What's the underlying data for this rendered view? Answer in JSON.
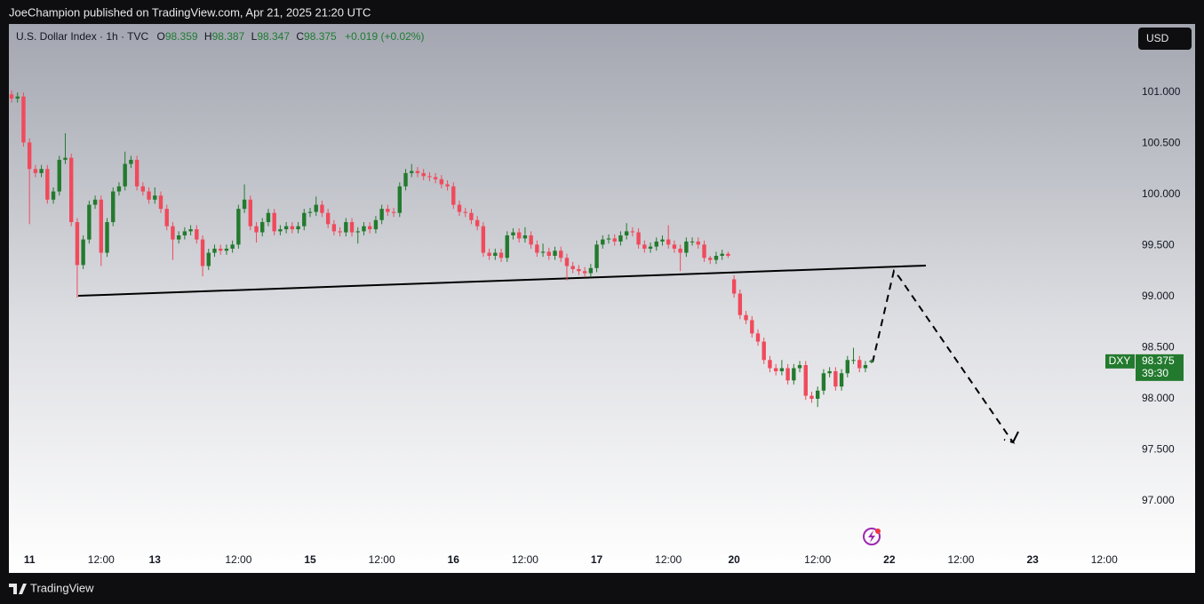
{
  "page": {
    "published": "JoeChampion published on TradingView.com, Apr 21, 2025 21:20 UTC",
    "brand": "TradingView"
  },
  "chart_data": {
    "type": "candlestick",
    "title": "U.S. Dollar Index · 1h · TVC",
    "ohlc_labels": [
      "O",
      "H",
      "L",
      "C"
    ],
    "change": "+0.019 (+0.02%)",
    "currency": "USD",
    "symbol": "DXY",
    "countdown": "39:30",
    "up_color": "#237a2e",
    "down_color": "#f04a5c",
    "categories": [
      null,
      null,
      null,
      "11",
      null,
      null,
      null,
      null,
      null,
      null,
      null,
      null,
      null,
      null,
      null,
      "12:00",
      null,
      null,
      null,
      null,
      null,
      null,
      null,
      null,
      "13",
      null,
      null,
      null,
      null,
      null,
      null,
      null,
      null,
      null,
      null,
      null,
      null,
      null,
      "12:00",
      null,
      null,
      null,
      null,
      null,
      null,
      null,
      null,
      null,
      null,
      null,
      "15",
      null,
      null,
      null,
      null,
      null,
      null,
      null,
      null,
      null,
      null,
      null,
      "12:00",
      null,
      null,
      null,
      null,
      null,
      null,
      null,
      null,
      null,
      null,
      null,
      "16",
      null,
      null,
      null,
      null,
      null,
      null,
      null,
      null,
      null,
      null,
      null,
      "12:00",
      null,
      null,
      null,
      null,
      null,
      null,
      null,
      null,
      null,
      null,
      null,
      "17",
      null,
      null,
      null,
      null,
      null,
      null,
      null,
      null,
      null,
      null,
      null,
      "12:00",
      null,
      null,
      null,
      null,
      null,
      null,
      null,
      null,
      null,
      null,
      "20",
      null,
      null,
      null,
      null,
      null,
      null,
      null,
      null,
      null,
      null,
      null,
      null,
      null,
      "12:00",
      null,
      null,
      null,
      null,
      null,
      null,
      null,
      null,
      null,
      null,
      null,
      "22",
      null,
      null,
      null,
      null,
      null,
      null,
      null,
      null,
      null,
      null,
      null,
      "12:00",
      null,
      null,
      null,
      null,
      null,
      null,
      null,
      null,
      null,
      null,
      null,
      "23",
      null,
      null,
      null,
      null,
      null,
      null,
      null,
      null,
      null,
      null,
      null,
      "12:00",
      null,
      null,
      null,
      null,
      null
    ],
    "open": [
      100.98,
      100.94,
      100.96,
      100.51,
      100.25,
      100.21,
      100.25,
      99.95,
      100.03,
      100.34,
      100.36,
      99.73,
      99.31,
      99.56,
      99.9,
      99.95,
      99.43,
      99.73,
      100.03,
      100.08,
      100.3,
      100.34,
      100.08,
      100.03,
      99.95,
      99.99,
      99.86,
      99.69,
      99.56,
      99.6,
      99.64,
      99.66,
      99.56,
      99.3,
      99.43,
      99.47,
      99.45,
      99.47,
      99.51,
      99.86,
      99.95,
      99.69,
      99.63,
      99.73,
      99.82,
      99.64,
      99.66,
      99.69,
      99.66,
      99.69,
      99.82,
      99.83,
      99.9,
      99.82,
      99.71,
      99.64,
      99.63,
      99.73,
      99.63,
      99.64,
      99.69,
      99.66,
      99.75,
      99.86,
      99.83,
      99.82,
      100.08,
      100.21,
      100.23,
      100.21,
      100.18,
      100.17,
      100.15,
      100.1,
      100.08,
      99.9,
      99.83,
      99.82,
      99.75,
      99.69,
      99.43,
      99.4,
      99.43,
      99.38,
      99.6,
      99.63,
      99.57,
      99.6,
      99.51,
      99.43,
      99.44,
      99.4,
      99.45,
      99.38,
      99.3,
      99.27,
      99.25,
      99.23,
      99.28,
      99.51,
      99.56,
      99.57,
      99.54,
      99.6,
      99.64,
      99.63,
      99.51,
      99.47,
      99.49,
      99.54,
      99.56,
      99.51,
      99.47,
      99.43,
      99.54,
      99.54,
      99.51,
      99.38,
      99.36,
      99.4,
      99.42,
      99.17,
      99.03,
      98.82,
      98.77,
      98.64,
      98.56,
      98.38,
      98.3,
      98.27,
      98.3,
      98.18,
      98.3,
      98.33,
      98.03,
      98.0,
      98.08,
      98.25,
      98.27,
      98.12,
      98.25,
      98.38,
      98.38,
      98.3,
      98.359,
      null,
      null,
      null,
      null,
      null,
      null,
      null,
      null,
      null,
      null,
      null,
      null,
      null,
      null,
      null,
      null,
      null,
      null,
      null,
      null,
      null,
      null,
      null,
      null,
      null,
      null,
      null,
      null,
      null,
      null,
      null,
      null,
      null,
      null,
      null,
      null,
      null,
      null,
      null,
      null,
      null,
      null,
      null,
      null
    ],
    "high": [
      101.02,
      101.0,
      101.0,
      100.55,
      100.29,
      100.29,
      100.29,
      100.07,
      100.38,
      100.6,
      100.4,
      99.77,
      99.6,
      99.94,
      99.99,
      99.99,
      99.77,
      100.07,
      100.12,
      100.42,
      100.38,
      100.38,
      100.12,
      100.07,
      100.07,
      100.03,
      99.9,
      99.73,
      99.64,
      99.68,
      99.7,
      99.7,
      99.6,
      99.47,
      99.51,
      99.51,
      99.51,
      99.55,
      99.9,
      100.1,
      99.99,
      99.73,
      99.77,
      99.86,
      99.86,
      99.7,
      99.73,
      99.73,
      99.73,
      99.86,
      99.87,
      99.98,
      99.94,
      99.86,
      99.75,
      99.68,
      99.77,
      99.77,
      99.68,
      99.73,
      99.73,
      99.79,
      99.9,
      99.9,
      99.87,
      100.12,
      100.25,
      100.3,
      100.27,
      100.25,
      100.22,
      100.21,
      100.19,
      100.14,
      100.12,
      99.94,
      99.87,
      99.86,
      99.79,
      99.73,
      99.47,
      99.47,
      99.47,
      99.64,
      99.67,
      99.67,
      99.68,
      99.64,
      99.55,
      99.52,
      99.48,
      99.49,
      99.49,
      99.42,
      99.34,
      99.31,
      99.29,
      99.32,
      99.55,
      99.6,
      99.61,
      99.61,
      99.64,
      99.72,
      99.68,
      99.67,
      99.55,
      99.53,
      99.58,
      99.6,
      99.7,
      99.55,
      99.51,
      99.58,
      99.58,
      99.58,
      99.55,
      99.4,
      99.44,
      99.46,
      99.44,
      99.21,
      99.07,
      98.86,
      98.81,
      98.68,
      98.6,
      98.42,
      98.34,
      98.38,
      98.34,
      98.34,
      98.37,
      98.37,
      98.07,
      98.12,
      98.29,
      98.31,
      98.31,
      98.29,
      98.42,
      98.5,
      98.42,
      98.37,
      98.387,
      null,
      null,
      null,
      null,
      null,
      null,
      null,
      null,
      null,
      null,
      null,
      null,
      null,
      null,
      null,
      null,
      null,
      null,
      null,
      null,
      null,
      null,
      null,
      null,
      null,
      null,
      null,
      null,
      null,
      null,
      null,
      null,
      null,
      null,
      null,
      null,
      null,
      null,
      null,
      null,
      null,
      null,
      null,
      null
    ],
    "low": [
      100.9,
      100.9,
      100.47,
      99.71,
      100.17,
      100.17,
      99.91,
      99.91,
      99.99,
      100.3,
      99.69,
      98.99,
      99.27,
      99.52,
      99.86,
      99.3,
      99.39,
      99.69,
      99.99,
      100.04,
      100.26,
      100.04,
      99.99,
      99.91,
      99.91,
      99.82,
      99.65,
      99.36,
      99.52,
      99.56,
      99.6,
      99.52,
      99.2,
      99.26,
      99.39,
      99.41,
      99.41,
      99.43,
      99.47,
      99.82,
      99.65,
      99.53,
      99.59,
      99.69,
      99.6,
      99.6,
      99.62,
      99.62,
      99.62,
      99.65,
      99.78,
      99.79,
      99.78,
      99.67,
      99.6,
      99.59,
      99.59,
      99.59,
      99.52,
      99.6,
      99.62,
      99.62,
      99.71,
      99.79,
      99.78,
      99.78,
      100.04,
      100.17,
      100.17,
      100.14,
      100.13,
      100.11,
      100.06,
      100.04,
      99.86,
      99.79,
      99.78,
      99.71,
      99.65,
      99.39,
      99.36,
      99.36,
      99.34,
      99.34,
      99.56,
      99.53,
      99.53,
      99.47,
      99.39,
      99.39,
      99.36,
      99.36,
      99.34,
      99.16,
      99.23,
      99.21,
      99.19,
      99.19,
      99.24,
      99.47,
      99.52,
      99.5,
      99.5,
      99.56,
      99.59,
      99.47,
      99.43,
      99.43,
      99.45,
      99.5,
      99.47,
      99.43,
      99.25,
      99.39,
      99.5,
      99.47,
      99.34,
      99.32,
      99.32,
      99.36,
      99.38,
      98.99,
      98.78,
      98.73,
      98.6,
      98.52,
      98.34,
      98.26,
      98.23,
      98.23,
      98.14,
      98.14,
      98.26,
      97.99,
      97.96,
      97.92,
      98.04,
      98.21,
      98.08,
      98.08,
      98.21,
      98.34,
      98.26,
      98.26,
      98.347,
      null,
      null,
      null,
      null,
      null,
      null,
      null,
      null,
      null,
      null,
      null,
      null,
      null,
      null,
      null,
      null,
      null,
      null,
      null,
      null,
      null,
      null,
      null,
      null,
      null,
      null,
      null,
      null,
      null,
      null,
      null,
      null,
      null,
      null,
      null,
      null,
      null,
      null,
      null,
      null,
      null,
      null,
      null,
      null
    ],
    "close": [
      100.94,
      100.96,
      100.51,
      100.25,
      100.21,
      100.25,
      99.95,
      100.03,
      100.34,
      100.36,
      99.73,
      99.31,
      99.56,
      99.9,
      99.95,
      99.43,
      99.73,
      100.03,
      100.08,
      100.3,
      100.34,
      100.08,
      100.03,
      99.95,
      99.99,
      99.86,
      99.69,
      99.56,
      99.6,
      99.64,
      99.66,
      99.56,
      99.3,
      99.43,
      99.47,
      99.45,
      99.47,
      99.51,
      99.86,
      99.95,
      99.69,
      99.63,
      99.73,
      99.82,
      99.64,
      99.66,
      99.69,
      99.66,
      99.69,
      99.82,
      99.83,
      99.9,
      99.82,
      99.71,
      99.64,
      99.63,
      99.73,
      99.63,
      99.64,
      99.69,
      99.66,
      99.75,
      99.86,
      99.83,
      99.82,
      100.08,
      100.21,
      100.23,
      100.21,
      100.18,
      100.17,
      100.15,
      100.1,
      100.08,
      99.9,
      99.83,
      99.82,
      99.75,
      99.69,
      99.43,
      99.4,
      99.43,
      99.38,
      99.6,
      99.63,
      99.57,
      99.6,
      99.51,
      99.43,
      99.44,
      99.4,
      99.45,
      99.38,
      99.3,
      99.27,
      99.25,
      99.23,
      99.28,
      99.51,
      99.56,
      99.57,
      99.54,
      99.6,
      99.64,
      99.63,
      99.51,
      99.47,
      99.49,
      99.54,
      99.56,
      99.51,
      99.47,
      99.43,
      99.54,
      99.54,
      99.51,
      99.38,
      99.36,
      99.4,
      99.42,
      99.4,
      99.03,
      98.82,
      98.77,
      98.64,
      98.56,
      98.38,
      98.3,
      98.27,
      98.3,
      98.18,
      98.3,
      98.33,
      98.03,
      98.0,
      98.08,
      98.25,
      98.27,
      98.12,
      98.25,
      98.38,
      98.38,
      98.3,
      98.33,
      98.375,
      null,
      null,
      null,
      null,
      null,
      null,
      null,
      null,
      null,
      null,
      null,
      null,
      null,
      null,
      null,
      null,
      null,
      null,
      null,
      null,
      null,
      null,
      null,
      null,
      null,
      null,
      null,
      null,
      null,
      null,
      null,
      null,
      null,
      null,
      null,
      null,
      null,
      null,
      null,
      null,
      null,
      null,
      null,
      null
    ],
    "ylim": [
      96.53,
      101.67
    ],
    "yticks": [
      {
        "value": 101,
        "label": "101.000"
      },
      {
        "value": 100.5,
        "label": "100.500"
      },
      {
        "value": 100,
        "label": "100.000"
      },
      {
        "value": 99.5,
        "label": "99.500"
      },
      {
        "value": 99,
        "label": "99.000"
      },
      {
        "value": 98.5,
        "label": "98.500"
      },
      {
        "value": 98,
        "label": "98.000"
      },
      {
        "value": 97.5,
        "label": "97.500"
      },
      {
        "value": 97,
        "label": "97.000"
      }
    ],
    "grid": false
  }
}
